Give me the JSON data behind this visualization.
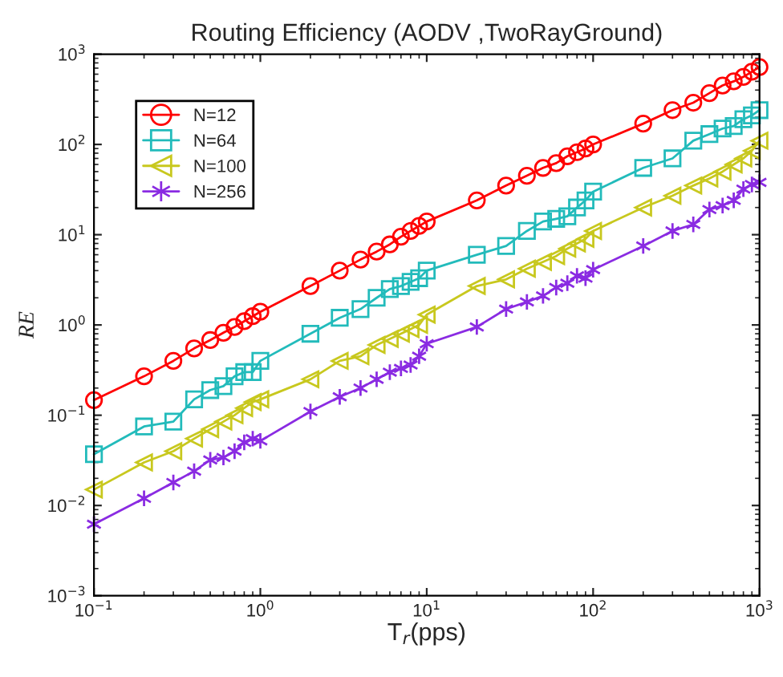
{
  "chart_data": {
    "type": "line",
    "title": "Routing Efficiency (AODV ,TwoRayGround)",
    "xlabel": "T$_{r}$(pps)",
    "ylabel": "RE",
    "log": "xy",
    "grid": false,
    "legend": "top left",
    "x": [
      0.1,
      0.2,
      0.3,
      0.4,
      0.5,
      0.6,
      0.7,
      0.8,
      0.9,
      1,
      2,
      3,
      4,
      5,
      6,
      7,
      8,
      9,
      10,
      20,
      30,
      40,
      50,
      60,
      70,
      80,
      90,
      100,
      200,
      300,
      400,
      500,
      600,
      700,
      800,
      900,
      1000
    ],
    "xlim": [
      0.1,
      1000
    ],
    "ylim": [
      0.001,
      1000
    ],
    "xticks": [
      {
        "value": 0.1,
        "label": "10$^{−1}$"
      },
      {
        "value": 1,
        "label": "10$^{0}$"
      },
      {
        "value": 10,
        "label": "10$^{1}$"
      },
      {
        "value": 100,
        "label": "10$^{2}$"
      },
      {
        "value": 1000,
        "label": "10$^{3}$"
      }
    ],
    "yticks": [
      {
        "value": 0.001,
        "label": "10$^{−3}$"
      },
      {
        "value": 0.01,
        "label": "10$^{−2}$"
      },
      {
        "value": 0.1,
        "label": "10$^{−1}$"
      },
      {
        "value": 1,
        "label": "10$^{0}$"
      },
      {
        "value": 10,
        "label": "10$^{1}$"
      },
      {
        "value": 100,
        "label": "10$^{2}$"
      },
      {
        "value": 1000,
        "label": "10$^{3}$"
      }
    ],
    "series": [
      {
        "name": "N=12",
        "color": "#ff0000",
        "marker": "circle",
        "values": [
          0.147,
          0.27,
          0.4,
          0.55,
          0.68,
          0.82,
          0.95,
          1.1,
          1.25,
          1.4,
          2.7,
          4.0,
          5.3,
          6.5,
          7.8,
          9.5,
          11,
          12.5,
          14,
          24,
          35,
          45,
          55,
          62,
          74,
          82,
          90,
          100,
          170,
          240,
          290,
          370,
          450,
          500,
          560,
          640,
          720
        ]
      },
      {
        "name": "N=64",
        "color": "#22bbbb",
        "marker": "square",
        "values": [
          0.037,
          0.075,
          0.085,
          0.15,
          0.19,
          0.21,
          0.27,
          0.3,
          0.3,
          0.4,
          0.8,
          1.2,
          1.5,
          2.0,
          2.5,
          2.7,
          3.0,
          3.3,
          4.0,
          6.0,
          7.5,
          11,
          14,
          15,
          16,
          20,
          24,
          30,
          55,
          70,
          110,
          130,
          150,
          160,
          190,
          210,
          240
        ]
      },
      {
        "name": "N=100",
        "color": "#c8c81e",
        "marker": "triangle",
        "values": [
          0.015,
          0.03,
          0.04,
          0.055,
          0.07,
          0.085,
          0.1,
          0.12,
          0.14,
          0.15,
          0.25,
          0.4,
          0.45,
          0.6,
          0.7,
          0.8,
          0.9,
          1.0,
          1.3,
          2.7,
          3.2,
          4.2,
          5.0,
          5.8,
          7.0,
          8.0,
          9.0,
          11,
          20,
          27,
          35,
          42,
          50,
          60,
          70,
          85,
          110
        ]
      },
      {
        "name": "N=256",
        "color": "#8a2be2",
        "marker": "cross",
        "values": [
          0.0062,
          0.012,
          0.018,
          0.024,
          0.032,
          0.034,
          0.04,
          0.05,
          0.055,
          0.052,
          0.11,
          0.16,
          0.2,
          0.25,
          0.3,
          0.33,
          0.36,
          0.45,
          0.62,
          0.95,
          1.5,
          1.8,
          2.1,
          2.6,
          2.9,
          3.5,
          3.3,
          4.1,
          7.5,
          11,
          13,
          19,
          21,
          24,
          32,
          36,
          38
        ]
      }
    ]
  }
}
